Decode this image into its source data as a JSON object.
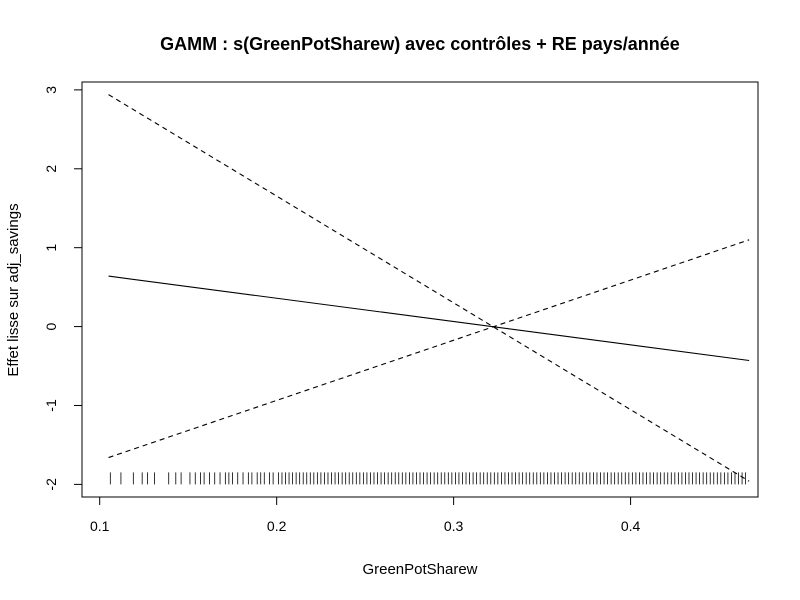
{
  "chart_data": {
    "type": "line",
    "title": "GAMM : s(GreenPotSharew) avec contrôles + RE pays/année",
    "xlabel": "GreenPotSharew",
    "ylabel": "Effet lisse sur adj_savings",
    "xlim": [
      0.09,
      0.472
    ],
    "ylim": [
      -2.16,
      3.1
    ],
    "x_ticks": [
      0.1,
      0.2,
      0.3,
      0.4
    ],
    "x_tick_labels": [
      "0.1",
      "0.2",
      "0.3",
      "0.4"
    ],
    "y_ticks": [
      -2,
      -1,
      0,
      1,
      2,
      3
    ],
    "y_tick_labels": [
      "-2",
      "-1",
      "0",
      "1",
      "2",
      "3"
    ],
    "grid": false,
    "legend": "none",
    "series": [
      {
        "style": "solid",
        "x": [
          0.105,
          0.467
        ],
        "y": [
          0.64,
          -0.43
        ]
      },
      {
        "style": "dashed",
        "x": [
          0.105,
          0.467
        ],
        "y": [
          2.94,
          -1.96
        ]
      },
      {
        "style": "dashed",
        "x": [
          0.105,
          0.467
        ],
        "y": [
          -1.66,
          1.1
        ]
      }
    ],
    "rug_y": -2,
    "rug": [
      0.106,
      0.112,
      0.119,
      0.124,
      0.127,
      0.131,
      0.139,
      0.143,
      0.146,
      0.151,
      0.154,
      0.157,
      0.159,
      0.162,
      0.165,
      0.168,
      0.171,
      0.173,
      0.175,
      0.178,
      0.181,
      0.184,
      0.186,
      0.189,
      0.191,
      0.193,
      0.196,
      0.198,
      0.201,
      0.203,
      0.205,
      0.207,
      0.209,
      0.211,
      0.213,
      0.215,
      0.217,
      0.219,
      0.221,
      0.223,
      0.225,
      0.227,
      0.229,
      0.231,
      0.233,
      0.235,
      0.237,
      0.239,
      0.241,
      0.243,
      0.245,
      0.247,
      0.249,
      0.251,
      0.253,
      0.255,
      0.257,
      0.259,
      0.261,
      0.263,
      0.265,
      0.267,
      0.269,
      0.271,
      0.273,
      0.275,
      0.277,
      0.279,
      0.281,
      0.283,
      0.285,
      0.287,
      0.289,
      0.291,
      0.293,
      0.295,
      0.297,
      0.299,
      0.301,
      0.303,
      0.305,
      0.307,
      0.309,
      0.311,
      0.313,
      0.315,
      0.317,
      0.319,
      0.321,
      0.323,
      0.325,
      0.327,
      0.329,
      0.331,
      0.333,
      0.335,
      0.337,
      0.339,
      0.341,
      0.343,
      0.345,
      0.347,
      0.349,
      0.351,
      0.353,
      0.355,
      0.357,
      0.359,
      0.361,
      0.363,
      0.365,
      0.367,
      0.369,
      0.371,
      0.373,
      0.375,
      0.377,
      0.379,
      0.381,
      0.383,
      0.385,
      0.387,
      0.389,
      0.391,
      0.393,
      0.395,
      0.397,
      0.399,
      0.401,
      0.403,
      0.405,
      0.407,
      0.409,
      0.411,
      0.413,
      0.415,
      0.417,
      0.419,
      0.421,
      0.423,
      0.425,
      0.427,
      0.429,
      0.431,
      0.433,
      0.435,
      0.437,
      0.439,
      0.441,
      0.443,
      0.445,
      0.447,
      0.449,
      0.451,
      0.453,
      0.455,
      0.457,
      0.459,
      0.461,
      0.463,
      0.465
    ]
  }
}
